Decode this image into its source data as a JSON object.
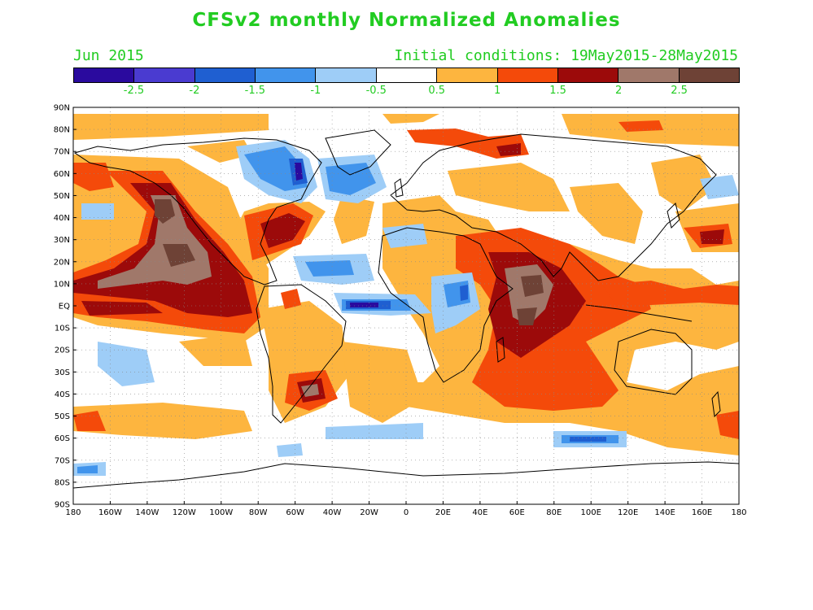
{
  "title": "CFSv2 monthly Normalized Anomalies",
  "month_label": "Jun 2015",
  "initial_conditions": "Initial conditions: 19May2015-28May2015",
  "colors": {
    "title": "#22cc22",
    "levels": [
      "#2a0a9e",
      "#4a3bd0",
      "#1f5fd1",
      "#4194ec",
      "#9ecdf7",
      "#ffffff",
      "#fdb53f",
      "#f44a0a",
      "#9c0a0a",
      "#a0786a",
      "#6e4236"
    ]
  },
  "colorbar": {
    "labels": [
      "-2.5",
      "-2",
      "-1.5",
      "-1",
      "-0.5",
      "0.5",
      "1",
      "1.5",
      "2",
      "2.5"
    ]
  },
  "axes": {
    "lat_labels": [
      "90N",
      "80N",
      "70N",
      "60N",
      "50N",
      "40N",
      "30N",
      "20N",
      "10N",
      "EQ",
      "10S",
      "20S",
      "30S",
      "40S",
      "50S",
      "60S",
      "70S",
      "80S",
      "90S"
    ],
    "lon_labels": [
      "180",
      "160W",
      "140W",
      "120W",
      "100W",
      "80W",
      "60W",
      "40W",
      "20W",
      "0",
      "20E",
      "40E",
      "60E",
      "80E",
      "100E",
      "120E",
      "140E",
      "160E",
      "180"
    ]
  }
}
